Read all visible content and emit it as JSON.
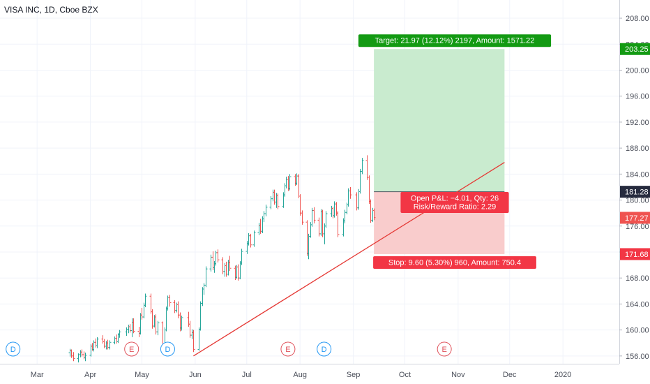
{
  "header": {
    "title": "VISA INC, 1D, Cboe BZX"
  },
  "colors": {
    "up": "#26a69a",
    "down": "#ef5350",
    "grid": "#f0f3fa",
    "target_zone": "#c9ebcf",
    "stop_zone": "#f9cccc",
    "target_label": "#139a13",
    "stop_label": "#f23645",
    "trend_line": "#e53935",
    "axis_text": "#4a4e59",
    "dividend": "#2196f3",
    "earnings": "#e0525b"
  },
  "chart_data": {
    "type": "ohlc",
    "ylim": [
      154.8,
      210.8
    ],
    "y_ticks": [
      156.0,
      160.0,
      164.0,
      168.0,
      172.0,
      176.0,
      180.0,
      184.0,
      188.0,
      192.0,
      196.0,
      200.0,
      204.0,
      208.0
    ],
    "y_tick_labels": [
      "156.00",
      "160.00",
      "164.00",
      "168.00",
      "172.00",
      "176.00",
      "180.00",
      "184.00",
      "188.00",
      "192.00",
      "196.00",
      "200.00",
      "204.00",
      "208.00"
    ],
    "x_labels": [
      "Mar",
      "Apr",
      "May",
      "Jun",
      "Jul",
      "Aug",
      "Sep",
      "Oct",
      "Nov",
      "Dec",
      "2020"
    ],
    "price_badges": [
      {
        "label": "203.25",
        "value": 203.25,
        "color": "#139a13"
      },
      {
        "label": "181.28",
        "value": 181.28,
        "color": "#262b3e"
      },
      {
        "label": "177.27",
        "value": 177.27,
        "color": "#ef5350"
      },
      {
        "label": "171.68",
        "value": 171.68,
        "color": "#f23645"
      }
    ],
    "position": {
      "side": "long",
      "entry": 181.28,
      "target": 203.25,
      "stop": 171.68,
      "start": "2019-09-13",
      "end": "2019-11-28",
      "target_label": "Target: 21.97 (12.12%) 2197, Amount: 1571.22",
      "stop_label": "Stop: 9.60 (5.30%) 960, Amount: 750.4",
      "pnl_label": "Open P&L: −4.01, Qty: 26",
      "rr_label": "Risk/Reward Ratio: 2.29"
    },
    "trend_line": {
      "from": [
        "2019-05-31",
        156.0
      ],
      "to": [
        "2019-11-28",
        185.8
      ]
    },
    "events": [
      {
        "type": "D",
        "date": "2019-02-15"
      },
      {
        "type": "E",
        "date": "2019-04-25"
      },
      {
        "type": "D",
        "date": "2019-05-16"
      },
      {
        "type": "E",
        "date": "2019-07-25"
      },
      {
        "type": "D",
        "date": "2019-08-15"
      },
      {
        "type": "E",
        "date": "2019-10-24"
      }
    ],
    "series": [
      {
        "values": [
          [
            "2019-03-20",
            156.5,
            157.1,
            155.9,
            156.8
          ],
          [
            "2019-03-21",
            156.8,
            157.0,
            155.7,
            156.0
          ],
          [
            "2019-03-22",
            156.0,
            156.6,
            155.2,
            155.6
          ],
          [
            "2019-03-25",
            155.6,
            156.4,
            155.0,
            156.2
          ],
          [
            "2019-03-26",
            156.2,
            156.9,
            155.8,
            156.6
          ],
          [
            "2019-03-27",
            156.6,
            157.0,
            155.9,
            156.2
          ],
          [
            "2019-03-28",
            156.2,
            156.7,
            155.5,
            155.8
          ],
          [
            "2019-03-29",
            155.8,
            156.5,
            155.2,
            156.1
          ],
          [
            "2019-04-01",
            156.1,
            157.8,
            155.9,
            157.5
          ],
          [
            "2019-04-02",
            157.5,
            158.0,
            156.8,
            157.0
          ],
          [
            "2019-04-03",
            157.0,
            158.4,
            156.7,
            158.1
          ],
          [
            "2019-04-04",
            158.1,
            158.7,
            157.3,
            157.6
          ],
          [
            "2019-04-05",
            157.6,
            158.9,
            157.2,
            158.6
          ],
          [
            "2019-04-08",
            158.6,
            159.2,
            157.9,
            158.2
          ],
          [
            "2019-04-09",
            158.2,
            158.6,
            157.2,
            157.5
          ],
          [
            "2019-04-10",
            157.5,
            158.3,
            157.0,
            158.0
          ],
          [
            "2019-04-11",
            158.0,
            158.5,
            157.0,
            157.3
          ],
          [
            "2019-04-12",
            157.3,
            158.4,
            157.0,
            158.1
          ],
          [
            "2019-04-15",
            158.1,
            159.0,
            157.8,
            158.7
          ],
          [
            "2019-04-16",
            158.7,
            159.3,
            157.9,
            158.2
          ],
          [
            "2019-04-17",
            158.2,
            159.5,
            158.0,
            159.3
          ],
          [
            "2019-04-18",
            159.3,
            160.0,
            158.8,
            159.7
          ],
          [
            "2019-04-22",
            159.7,
            160.4,
            159.1,
            160.1
          ],
          [
            "2019-04-23",
            160.1,
            160.8,
            159.5,
            160.5
          ],
          [
            "2019-04-24",
            160.5,
            160.9,
            159.6,
            159.9
          ],
          [
            "2019-04-25",
            159.9,
            161.8,
            158.9,
            161.2
          ],
          [
            "2019-04-26",
            161.2,
            161.8,
            159.5,
            159.8
          ],
          [
            "2019-04-29",
            159.8,
            160.5,
            158.9,
            159.5
          ],
          [
            "2019-04-30",
            159.5,
            162.6,
            159.3,
            162.3
          ],
          [
            "2019-05-01",
            162.3,
            163.4,
            161.6,
            162.0
          ],
          [
            "2019-05-02",
            162.0,
            164.2,
            161.8,
            163.8
          ],
          [
            "2019-05-03",
            163.8,
            165.6,
            163.5,
            165.2
          ],
          [
            "2019-05-06",
            165.2,
            165.6,
            162.5,
            162.8
          ],
          [
            "2019-05-07",
            162.8,
            163.2,
            160.2,
            160.6
          ],
          [
            "2019-05-08",
            160.6,
            162.3,
            160.4,
            162.0
          ],
          [
            "2019-05-09",
            162.0,
            162.4,
            159.3,
            159.7
          ],
          [
            "2019-05-10",
            159.7,
            161.4,
            159.2,
            161.1
          ],
          [
            "2019-05-13",
            161.1,
            161.3,
            157.3,
            157.7
          ],
          [
            "2019-05-14",
            157.7,
            160.4,
            157.5,
            160.0
          ],
          [
            "2019-05-15",
            160.0,
            163.6,
            159.8,
            163.3
          ],
          [
            "2019-05-16",
            163.3,
            165.3,
            163.0,
            165.0
          ],
          [
            "2019-05-17",
            165.0,
            165.4,
            163.6,
            164.2
          ],
          [
            "2019-05-20",
            164.2,
            164.6,
            162.6,
            163.0
          ],
          [
            "2019-05-21",
            163.0,
            164.2,
            162.7,
            163.9
          ],
          [
            "2019-05-22",
            163.9,
            164.4,
            161.8,
            162.3
          ],
          [
            "2019-05-23",
            162.3,
            162.7,
            159.8,
            160.3
          ],
          [
            "2019-05-24",
            160.3,
            162.2,
            159.9,
            161.9
          ],
          [
            "2019-05-28",
            161.9,
            162.8,
            160.5,
            160.9
          ],
          [
            "2019-05-29",
            160.9,
            161.4,
            158.8,
            159.2
          ],
          [
            "2019-05-30",
            159.2,
            160.1,
            158.6,
            159.6
          ],
          [
            "2019-05-31",
            159.6,
            160.0,
            156.6,
            157.0
          ],
          [
            "2019-06-03",
            157.0,
            160.4,
            156.8,
            160.1
          ],
          [
            "2019-06-04",
            160.1,
            164.4,
            159.9,
            164.1
          ],
          [
            "2019-06-05",
            164.1,
            166.6,
            163.7,
            166.3
          ],
          [
            "2019-06-06",
            166.3,
            167.2,
            165.4,
            166.9
          ],
          [
            "2019-06-07",
            166.9,
            169.8,
            166.6,
            169.4
          ],
          [
            "2019-06-10",
            169.4,
            171.6,
            169.0,
            171.2
          ],
          [
            "2019-06-11",
            171.2,
            172.1,
            169.2,
            169.6
          ],
          [
            "2019-06-12",
            169.6,
            170.6,
            168.8,
            170.2
          ],
          [
            "2019-06-13",
            170.2,
            172.2,
            169.9,
            171.9
          ],
          [
            "2019-06-14",
            171.9,
            172.4,
            170.4,
            170.8
          ],
          [
            "2019-06-17",
            170.8,
            171.2,
            168.6,
            169.0
          ],
          [
            "2019-06-18",
            169.0,
            170.3,
            168.2,
            169.9
          ],
          [
            "2019-06-19",
            169.9,
            170.5,
            168.2,
            168.6
          ],
          [
            "2019-06-20",
            168.6,
            170.8,
            168.4,
            170.4
          ],
          [
            "2019-06-21",
            170.4,
            171.4,
            169.1,
            169.5
          ],
          [
            "2019-06-24",
            169.5,
            169.9,
            167.7,
            168.1
          ],
          [
            "2019-06-25",
            168.1,
            170.0,
            167.9,
            169.7
          ],
          [
            "2019-06-26",
            169.7,
            170.1,
            167.6,
            168.0
          ],
          [
            "2019-06-27",
            168.0,
            170.6,
            167.8,
            170.3
          ],
          [
            "2019-06-28",
            170.3,
            172.5,
            170.0,
            172.1
          ],
          [
            "2019-07-01",
            172.1,
            173.7,
            171.7,
            173.3
          ],
          [
            "2019-07-02",
            173.3,
            174.9,
            173.0,
            174.5
          ],
          [
            "2019-07-03",
            174.5,
            174.8,
            172.7,
            173.1
          ],
          [
            "2019-07-05",
            173.1,
            175.3,
            172.8,
            175.0
          ],
          [
            "2019-07-08",
            175.0,
            176.5,
            174.6,
            176.1
          ],
          [
            "2019-07-09",
            176.1,
            177.1,
            174.8,
            175.2
          ],
          [
            "2019-07-10",
            175.2,
            177.5,
            174.9,
            177.1
          ],
          [
            "2019-07-11",
            177.1,
            178.3,
            176.6,
            177.9
          ],
          [
            "2019-07-12",
            177.9,
            179.3,
            177.5,
            178.9
          ],
          [
            "2019-07-15",
            178.9,
            180.6,
            178.6,
            180.2
          ],
          [
            "2019-07-16",
            180.2,
            181.6,
            179.8,
            181.2
          ],
          [
            "2019-07-17",
            181.2,
            181.6,
            179.3,
            179.7
          ],
          [
            "2019-07-18",
            179.7,
            181.1,
            178.8,
            180.7
          ],
          [
            "2019-07-19",
            180.7,
            181.0,
            178.6,
            179.0
          ],
          [
            "2019-07-22",
            179.0,
            181.2,
            178.8,
            180.8
          ],
          [
            "2019-07-23",
            180.8,
            182.6,
            180.5,
            182.2
          ],
          [
            "2019-07-24",
            182.2,
            183.6,
            181.8,
            183.2
          ],
          [
            "2019-07-25",
            183.2,
            183.7,
            181.4,
            181.8
          ],
          [
            "2019-07-26",
            181.8,
            184.0,
            181.5,
            183.6
          ],
          [
            "2019-07-29",
            183.6,
            184.0,
            182.2,
            182.6
          ],
          [
            "2019-07-30",
            182.6,
            184.1,
            182.3,
            183.7
          ],
          [
            "2019-07-31",
            183.7,
            184.0,
            180.3,
            180.6
          ],
          [
            "2019-08-01",
            180.6,
            180.9,
            177.6,
            178.0
          ],
          [
            "2019-08-02",
            178.0,
            178.4,
            176.2,
            176.6
          ],
          [
            "2019-08-05",
            176.6,
            176.9,
            171.4,
            171.8
          ],
          [
            "2019-08-06",
            171.8,
            174.8,
            170.9,
            174.4
          ],
          [
            "2019-08-07",
            174.4,
            176.6,
            174.2,
            176.2
          ],
          [
            "2019-08-08",
            176.2,
            178.8,
            175.9,
            178.4
          ],
          [
            "2019-08-09",
            178.4,
            178.9,
            176.4,
            176.9
          ],
          [
            "2019-08-12",
            176.9,
            177.3,
            174.4,
            174.8
          ],
          [
            "2019-08-13",
            174.8,
            178.6,
            174.5,
            178.2
          ],
          [
            "2019-08-14",
            178.2,
            178.5,
            174.3,
            174.8
          ],
          [
            "2019-08-15",
            174.8,
            176.4,
            173.2,
            176.0
          ],
          [
            "2019-08-16",
            176.0,
            178.3,
            175.7,
            177.9
          ],
          [
            "2019-08-19",
            177.9,
            179.1,
            177.4,
            178.7
          ],
          [
            "2019-08-20",
            178.7,
            179.0,
            177.2,
            177.6
          ],
          [
            "2019-08-21",
            177.6,
            179.8,
            177.3,
            179.4
          ],
          [
            "2019-08-22",
            179.4,
            179.7,
            177.6,
            178.0
          ],
          [
            "2019-08-23",
            178.0,
            178.3,
            174.3,
            174.7
          ],
          [
            "2019-08-26",
            174.7,
            177.2,
            174.4,
            176.8
          ],
          [
            "2019-08-27",
            176.8,
            178.5,
            176.4,
            178.1
          ],
          [
            "2019-08-28",
            178.1,
            179.6,
            177.8,
            179.3
          ],
          [
            "2019-08-29",
            179.3,
            181.8,
            179.0,
            181.4
          ],
          [
            "2019-08-30",
            181.4,
            182.0,
            180.2,
            180.8
          ],
          [
            "2019-09-03",
            180.8,
            181.2,
            178.4,
            178.8
          ],
          [
            "2019-09-04",
            178.8,
            181.7,
            178.5,
            181.3
          ],
          [
            "2019-09-05",
            181.3,
            184.8,
            181.0,
            184.4
          ],
          [
            "2019-09-06",
            184.4,
            186.5,
            184.0,
            186.1
          ],
          [
            "2019-09-09",
            186.1,
            186.9,
            183.1,
            183.5
          ],
          [
            "2019-09-10",
            183.5,
            183.8,
            179.4,
            179.8
          ],
          [
            "2019-09-11",
            179.8,
            180.1,
            176.5,
            176.9
          ],
          [
            "2019-09-12",
            176.9,
            178.8,
            176.6,
            178.4
          ],
          [
            "2019-09-13",
            178.4,
            178.7,
            176.9,
            177.3
          ]
        ]
      }
    ]
  }
}
